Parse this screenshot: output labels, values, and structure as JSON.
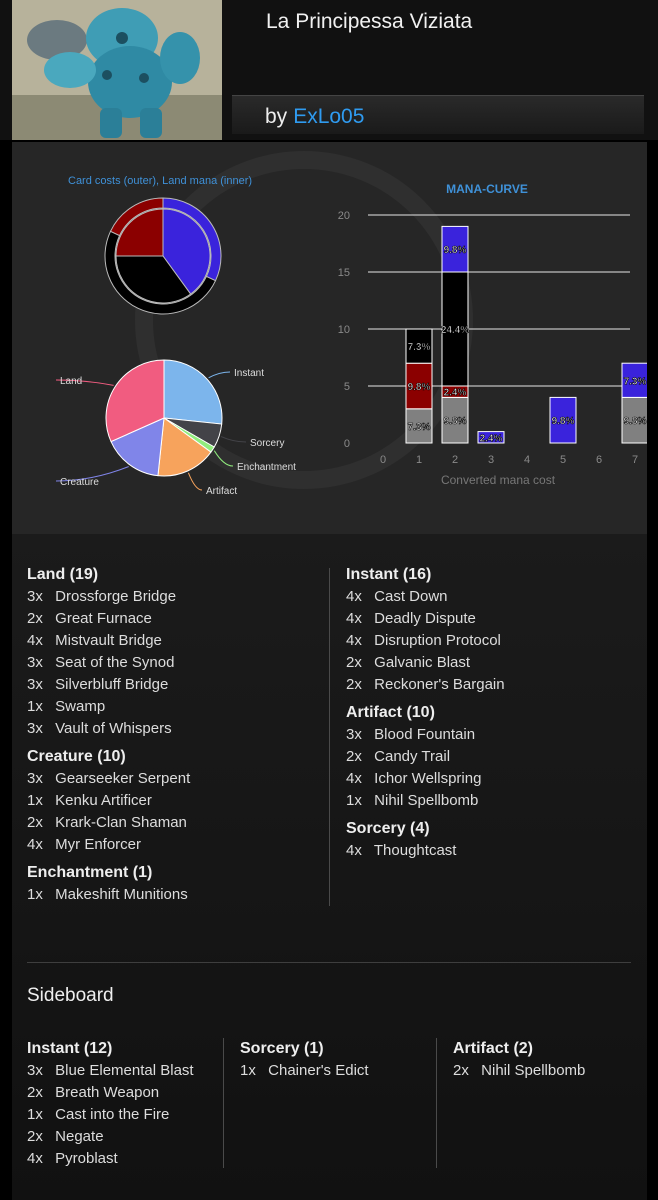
{
  "deck": {
    "title": "La Principessa Viziata",
    "by_label": "by",
    "author": "ExLo05"
  },
  "pie_cost": {
    "title": "Card costs (outer), Land mana (inner)",
    "outer": [
      {
        "color": "#3a23dc",
        "value": 0.32
      },
      {
        "color": "#000000",
        "value": 0.5
      },
      {
        "color": "#8b0000",
        "value": 0.18
      }
    ],
    "inner": [
      {
        "color": "#3a23dc",
        "value": 0.4
      },
      {
        "color": "#000000",
        "value": 0.35
      },
      {
        "color": "#8b0000",
        "value": 0.25
      }
    ]
  },
  "pie_types": {
    "slices": [
      {
        "label": "Instant",
        "value": 16,
        "color": "#7cb5ec"
      },
      {
        "label": "Sorcery",
        "value": 4,
        "color": "#434348"
      },
      {
        "label": "Enchantment",
        "value": 1,
        "color": "#90ed7d"
      },
      {
        "label": "Artifact",
        "value": 10,
        "color": "#f7a35c"
      },
      {
        "label": "Creature",
        "value": 10,
        "color": "#8085e9"
      },
      {
        "label": "Land",
        "value": 19,
        "color": "#f15c80"
      }
    ]
  },
  "chart_data": {
    "type": "bar",
    "title": "MANA-CURVE",
    "xlabel": "Converted mana cost",
    "ylabel": "",
    "ylim": [
      0,
      20
    ],
    "yticks": [
      0,
      5,
      10,
      15,
      20
    ],
    "categories": [
      "0",
      "1",
      "2",
      "3",
      "4",
      "5",
      "6",
      "7"
    ],
    "series": [
      {
        "color": "#808080",
        "values": [
          0,
          3,
          4,
          0,
          0,
          0,
          0,
          4
        ],
        "labels": [
          "",
          "7.3%",
          "9.8%",
          "",
          "",
          "",
          "",
          "9.8%"
        ]
      },
      {
        "color": "#8b0000",
        "values": [
          0,
          4,
          1,
          0,
          0,
          0,
          0,
          0
        ],
        "labels": [
          "",
          "9.8%",
          "2.4%",
          "",
          "",
          "",
          "",
          ""
        ]
      },
      {
        "color": "#000000",
        "values": [
          0,
          3,
          10,
          0,
          0,
          0,
          0,
          0
        ],
        "labels": [
          "",
          "7.3%",
          "24.4%",
          "",
          "",
          "",
          "",
          ""
        ]
      },
      {
        "color": "#3a23dc",
        "values": [
          0,
          0,
          4,
          1,
          0,
          4,
          0,
          3
        ],
        "labels": [
          "",
          "",
          "9.8%",
          "2.4%",
          "",
          "9.8%",
          "",
          "7.3%"
        ]
      }
    ]
  },
  "main": {
    "left": [
      {
        "title": "Land (19)",
        "cards": [
          {
            "qty": "3x",
            "name": "Drossforge Bridge"
          },
          {
            "qty": "2x",
            "name": "Great Furnace"
          },
          {
            "qty": "4x",
            "name": "Mistvault Bridge"
          },
          {
            "qty": "3x",
            "name": "Seat of the Synod"
          },
          {
            "qty": "3x",
            "name": "Silverbluff Bridge"
          },
          {
            "qty": "1x",
            "name": "Swamp"
          },
          {
            "qty": "3x",
            "name": "Vault of Whispers"
          }
        ]
      },
      {
        "title": "Creature (10)",
        "cards": [
          {
            "qty": "3x",
            "name": "Gearseeker Serpent"
          },
          {
            "qty": "1x",
            "name": "Kenku Artificer"
          },
          {
            "qty": "2x",
            "name": "Krark-Clan Shaman"
          },
          {
            "qty": "4x",
            "name": "Myr Enforcer"
          }
        ]
      },
      {
        "title": "Enchantment (1)",
        "cards": [
          {
            "qty": "1x",
            "name": "Makeshift Munitions"
          }
        ]
      }
    ],
    "right": [
      {
        "title": "Instant (16)",
        "cards": [
          {
            "qty": "4x",
            "name": "Cast Down"
          },
          {
            "qty": "4x",
            "name": "Deadly Dispute"
          },
          {
            "qty": "4x",
            "name": "Disruption Protocol"
          },
          {
            "qty": "2x",
            "name": "Galvanic Blast"
          },
          {
            "qty": "2x",
            "name": "Reckoner's Bargain"
          }
        ]
      },
      {
        "title": "Artifact (10)",
        "cards": [
          {
            "qty": "3x",
            "name": "Blood Fountain"
          },
          {
            "qty": "2x",
            "name": "Candy Trail"
          },
          {
            "qty": "4x",
            "name": "Ichor Wellspring"
          },
          {
            "qty": "1x",
            "name": "Nihil Spellbomb"
          }
        ]
      },
      {
        "title": "Sorcery (4)",
        "cards": [
          {
            "qty": "4x",
            "name": "Thoughtcast"
          }
        ]
      }
    ]
  },
  "sideboard": {
    "title": "Sideboard",
    "columns": [
      {
        "title": "Instant (12)",
        "cards": [
          {
            "qty": "3x",
            "name": "Blue Elemental Blast"
          },
          {
            "qty": "2x",
            "name": "Breath Weapon"
          },
          {
            "qty": "1x",
            "name": "Cast into the Fire"
          },
          {
            "qty": "2x",
            "name": "Negate"
          },
          {
            "qty": "4x",
            "name": "Pyroblast"
          }
        ]
      },
      {
        "title": "Sorcery (1)",
        "cards": [
          {
            "qty": "1x",
            "name": "Chainer's Edict"
          }
        ]
      },
      {
        "title": "Artifact (2)",
        "cards": [
          {
            "qty": "2x",
            "name": "Nihil Spellbomb"
          }
        ]
      }
    ]
  }
}
